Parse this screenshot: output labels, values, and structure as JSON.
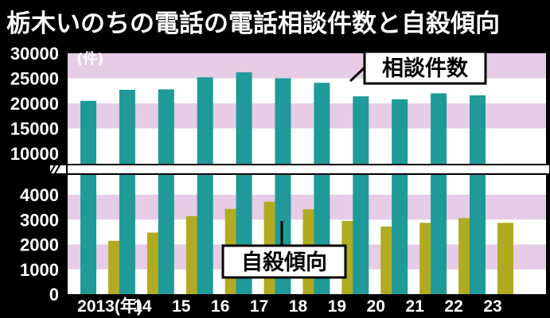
{
  "title": "栃木いのちの電話の電話相談件数と自殺傾向",
  "chart_data": {
    "type": "bar",
    "title": "栃木いのちの電話の電話相談件数と自殺傾向",
    "y_unit": "(件)",
    "categories": [
      "2013(年)",
      "14",
      "15",
      "16",
      "17",
      "18",
      "19",
      "20",
      "21",
      "22",
      "23"
    ],
    "series": [
      {
        "name": "相談件数",
        "color": "#1f9a98",
        "values": [
          20500,
          22700,
          22800,
          25200,
          26200,
          25000,
          24100,
          21400,
          20800,
          22000,
          21600
        ]
      },
      {
        "name": "自殺傾向",
        "color": "#b1ab22",
        "values": [
          2150,
          2480,
          3140,
          3430,
          3720,
          3420,
          2950,
          2720,
          2870,
          3060,
          2870
        ]
      }
    ],
    "y_axis_upper": {
      "ticks": [
        10000,
        15000,
        20000,
        25000,
        30000
      ],
      "labels": [
        "10000",
        "15000",
        "20000",
        "25000",
        "30000"
      ]
    },
    "y_axis_lower": {
      "ticks": [
        0,
        1000,
        2000,
        3000,
        4000
      ],
      "labels": [
        "0",
        "1000",
        "2000",
        "3000",
        "4000"
      ]
    },
    "axis_break": "between 4000 and 10000",
    "background_bands": "alternating pink and white per tick interval",
    "legend": "callout labels inside plot"
  }
}
